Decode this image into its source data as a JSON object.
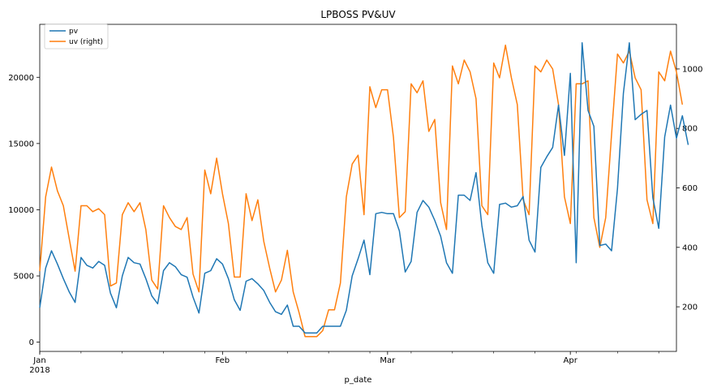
{
  "chart_data": {
    "type": "line",
    "title": "LPBOSS PV&UV",
    "xlabel": "p_date",
    "ylabel_left": "",
    "ylabel_right": "",
    "x_start": "2018-01-01",
    "x_end": "2018-04-19",
    "x_ticks": [
      {
        "date": "2018-01-01",
        "label": "Jan",
        "sublabel": "2018"
      },
      {
        "date": "2018-02-01",
        "label": "Feb",
        "sublabel": ""
      },
      {
        "date": "2018-03-01",
        "label": "Mar",
        "sublabel": ""
      },
      {
        "date": "2018-04-01",
        "label": "Apr",
        "sublabel": ""
      }
    ],
    "ylim_left": [
      -700,
      24000
    ],
    "yticks_left": [
      0,
      5000,
      10000,
      15000,
      20000
    ],
    "ylim_right": [
      50,
      1150
    ],
    "yticks_right": [
      200,
      400,
      600,
      800,
      1000
    ],
    "legend_loc": "upper left",
    "grid": false,
    "series": [
      {
        "name": "pv",
        "axis": "left",
        "color": "#1f77b4",
        "values": [
          2600,
          5600,
          6900,
          5900,
          4800,
          3800,
          3000,
          6400,
          5800,
          5600,
          6100,
          5800,
          3700,
          2600,
          5000,
          6400,
          6000,
          5900,
          4800,
          3500,
          2900,
          5400,
          6000,
          5700,
          5100,
          4900,
          3400,
          2200,
          5200,
          5400,
          6300,
          5900,
          4800,
          3200,
          2400,
          4600,
          4800,
          4400,
          3900,
          3000,
          2300,
          2100,
          2800,
          1200,
          1200,
          700,
          700,
          700,
          1200,
          1200,
          1200,
          1200,
          2400,
          5000,
          6300,
          7700,
          5100,
          9700,
          9800,
          9700,
          9700,
          8400,
          5300,
          6100,
          9800,
          10700,
          10200,
          9200,
          8000,
          6000,
          5200,
          11100,
          11100,
          10700,
          12800,
          8800,
          6000,
          5200,
          10400,
          10500,
          10200,
          10300,
          11000,
          7700,
          6800,
          13200,
          14000,
          14700,
          17900,
          14100,
          20300,
          6000,
          22600,
          17500,
          16300,
          7300,
          7400,
          6900,
          11600,
          18800,
          22600,
          16800,
          17200,
          17500,
          10900,
          8600,
          15500,
          17900,
          15400,
          17100,
          14900
        ]
      },
      {
        "name": "uv (right)",
        "axis": "right",
        "color": "#ff7f0e",
        "values": [
          320,
          570,
          670,
          590,
          540,
          430,
          320,
          540,
          540,
          520,
          530,
          510,
          270,
          280,
          510,
          550,
          520,
          550,
          460,
          290,
          260,
          540,
          500,
          470,
          460,
          500,
          310,
          250,
          660,
          580,
          700,
          580,
          480,
          300,
          300,
          580,
          490,
          560,
          420,
          330,
          250,
          290,
          390,
          250,
          180,
          100,
          100,
          100,
          120,
          190,
          190,
          280,
          570,
          680,
          710,
          510,
          940,
          870,
          930,
          930,
          770,
          500,
          520,
          950,
          920,
          960,
          790,
          830,
          550,
          460,
          1010,
          950,
          1030,
          990,
          900,
          540,
          510,
          1020,
          970,
          1080,
          970,
          880,
          560,
          510,
          1010,
          990,
          1030,
          1000,
          880,
          570,
          480,
          950,
          950,
          960,
          500,
          400,
          500,
          780,
          1050,
          1020,
          1060,
          970,
          930,
          560,
          480,
          990,
          960,
          1060,
          990,
          880
        ]
      }
    ]
  }
}
